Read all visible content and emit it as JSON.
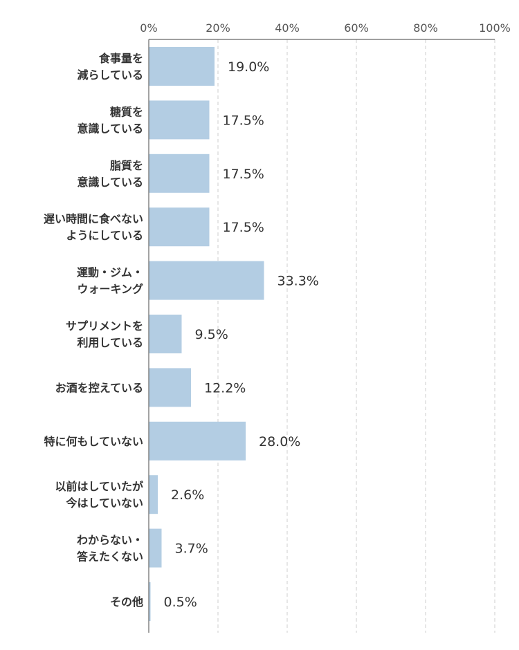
{
  "chart_data": {
    "type": "bar",
    "orientation": "horizontal",
    "categories": [
      [
        "食事量を",
        "減らしている"
      ],
      [
        "糖質を",
        "意識している"
      ],
      [
        "脂質を",
        "意識している"
      ],
      [
        "遅い時間に食べない",
        "ようにしている"
      ],
      [
        "運動・ジム・",
        "ウォーキング"
      ],
      [
        "サプリメントを",
        "利用している"
      ],
      [
        "お酒を控えている"
      ],
      [
        "特に何もしていない"
      ],
      [
        "以前はしていたが",
        "今はしていない"
      ],
      [
        "わからない・",
        "答えたくない"
      ],
      [
        "その他"
      ]
    ],
    "values": [
      19.0,
      17.5,
      17.5,
      17.5,
      33.3,
      9.5,
      12.2,
      28.0,
      2.6,
      3.7,
      0.5
    ],
    "value_labels": [
      "19.0%",
      "17.5%",
      "17.5%",
      "17.5%",
      "33.3%",
      "9.5%",
      "12.2%",
      "28.0%",
      "2.6%",
      "3.7%",
      "0.5%"
    ],
    "xlim": [
      0,
      100
    ],
    "x_ticks": [
      0,
      20,
      40,
      60,
      80,
      100
    ],
    "x_tick_labels": [
      "0%",
      "20%",
      "40%",
      "60%",
      "80%",
      "100%"
    ],
    "axis_position": "top",
    "grid": "vertical-dashed",
    "title": "",
    "xlabel": "",
    "ylabel": ""
  },
  "colors": {
    "bar": "#b3cde3",
    "grid": "#cccccc",
    "axis": "#666666",
    "text": "#333333"
  }
}
